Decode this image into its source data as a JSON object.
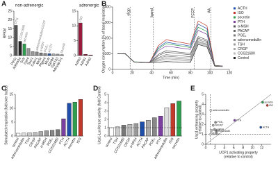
{
  "chart_data": [
    {
      "panel": "A",
      "type": "bar",
      "title": "non-adrenergic",
      "y_label": "RPKM",
      "categories": [
        "Pth1r",
        "Adora2a",
        "Sctr",
        "Gpr4",
        "Tacr1",
        "Calcr1",
        "Mc5r",
        "Ptger4",
        "Mc4r",
        "Gpr84",
        "Gpr133",
        "Adcyap1r1"
      ],
      "values": [
        17,
        8,
        6.5,
        4,
        2.2,
        2,
        1.5,
        1.2,
        1,
        0.9,
        0.8,
        0.5
      ],
      "ligands": [
        "PTH",
        "CGS21680",
        "secretin",
        null,
        null,
        "adrenomedullin/CGRP",
        "α-MSH",
        "PGE₂",
        "ACTH",
        null,
        null,
        "PACAP"
      ],
      "colors": [
        "#555555",
        "#222222",
        "#2e9e4f",
        "#999999",
        "#999999",
        "#888888",
        "#777777",
        "#888888",
        "#1f4fa8",
        "#aaaaaa",
        "#aaaaaa",
        "#999999"
      ],
      "ylim": [
        0,
        25
      ],
      "yticks": [
        0,
        5,
        10,
        15,
        20,
        25
      ]
    },
    {
      "panel": "",
      "type": "bar",
      "title": "adrenergic",
      "categories": [
        "Adrb3",
        "Adrb1",
        "Adrb2"
      ],
      "values": [
        11,
        0.4,
        0.2
      ],
      "ligands": [
        "ISO",
        null,
        null
      ],
      "colors": [
        "#9b1b3f",
        "#9b1b3f",
        "#9b1b3f"
      ],
      "ylim": [
        0,
        15
      ],
      "yticks": [
        0,
        5,
        10,
        15
      ]
    },
    {
      "panel": "B",
      "type": "line",
      "y_label": "Oxygen consumption (% of basal respiration)",
      "x_label": "Time (min)",
      "x": [
        5,
        13,
        22,
        30,
        38,
        47,
        55,
        63,
        72,
        80,
        88,
        97,
        105,
        113
      ],
      "events": [
        {
          "label": "oligo",
          "x": 18
        },
        {
          "label": "ligand",
          "x": 42
        },
        {
          "label": "FCCP",
          "x": 84
        },
        {
          "label": "AA",
          "x": 101
        }
      ],
      "series": [
        {
          "name": "ACTH",
          "color": "#1f4fa8",
          "values": [
            100,
            100,
            48,
            45,
            44,
            140,
            175,
            166,
            158,
            149,
            290,
            261,
            25,
            22
          ]
        },
        {
          "name": "ISO",
          "color": "#c0392b",
          "values": [
            100,
            101,
            47,
            45,
            43,
            152,
            190,
            181,
            171,
            162,
            310,
            279,
            26,
            22
          ]
        },
        {
          "name": "secretin",
          "color": "#2e9e4f",
          "values": [
            100,
            99,
            49,
            46,
            44,
            132,
            165,
            157,
            149,
            140,
            270,
            243,
            25,
            21
          ]
        },
        {
          "name": "PTH",
          "color": "#7b3fa0",
          "values": [
            100,
            100,
            48,
            46,
            45,
            120,
            150,
            143,
            135,
            128,
            250,
            225,
            24,
            21
          ]
        },
        {
          "name": "α-MSH",
          "color": "#555555",
          "values": [
            100,
            100,
            47,
            45,
            44,
            96,
            120,
            114,
            108,
            102,
            210,
            189,
            24,
            20
          ]
        },
        {
          "name": "PACAP",
          "color": "#666666",
          "values": [
            100,
            100,
            48,
            45,
            44,
            88,
            110,
            105,
            99,
            94,
            200,
            180,
            23,
            20
          ]
        },
        {
          "name": "PGE₂",
          "color": "#777777",
          "values": [
            100,
            100,
            48,
            46,
            44,
            76,
            95,
            90,
            86,
            81,
            190,
            171,
            23,
            20
          ]
        },
        {
          "name": "adrenomedullin",
          "color": "#888888",
          "values": [
            100,
            100,
            47,
            45,
            44,
            70,
            85,
            81,
            77,
            72,
            180,
            162,
            22,
            19
          ]
        },
        {
          "name": "TSH",
          "color": "#999999",
          "values": [
            100,
            100,
            48,
            45,
            43,
            62,
            75,
            71,
            68,
            64,
            175,
            158,
            22,
            19
          ]
        },
        {
          "name": "CRGP",
          "color": "#aaaaaa",
          "values": [
            100,
            100,
            48,
            45,
            44,
            58,
            68,
            65,
            62,
            58,
            170,
            153,
            22,
            19
          ]
        },
        {
          "name": "CGS21680",
          "color": "#bbbbbb",
          "values": [
            100,
            100,
            47,
            45,
            44,
            54,
            62,
            59,
            56,
            53,
            165,
            149,
            21,
            19
          ]
        },
        {
          "name": "Control",
          "color": "#222222",
          "values": [
            100,
            100,
            48,
            45,
            44,
            46,
            50,
            48,
            47,
            45,
            160,
            144,
            21,
            18
          ]
        }
      ],
      "xlim": [
        0,
        120
      ],
      "xticks": [
        0,
        20,
        40,
        60,
        80,
        100,
        120
      ],
      "ylim": [
        0,
        400
      ],
      "yticks": [
        0,
        100,
        200,
        300,
        400
      ]
    },
    {
      "panel": "C",
      "type": "bar",
      "y_label": "Stimulated respiration (fold over basal)",
      "categories": [
        "control",
        "adrenomedullin",
        "TSH",
        "CRGP",
        "PACAP",
        "α-MSH",
        "PGE₂",
        "CGS21680",
        "PTH",
        "ACTH",
        "secretin",
        "ISO"
      ],
      "values": [
        1,
        1.1,
        1.2,
        1.3,
        1.6,
        1.9,
        2.1,
        2.3,
        6.2,
        11.8,
        12.2,
        13.2
      ],
      "colors": [
        "#ffffff",
        "#dddddd",
        "#cccccc",
        "#bbbbbb",
        "#aaaaaa",
        "#999999",
        "#888888",
        "#777777",
        "#7b3fa0",
        "#1f4fa8",
        "#2e9e4f",
        "#c0392b"
      ],
      "ylim": [
        0,
        15
      ],
      "yticks": [
        0,
        5,
        10,
        15
      ]
    },
    {
      "panel": "D",
      "type": "bar",
      "y_label": "Ucp1-Luciferase activity (fold Control)",
      "categories": [
        "control",
        "TSH",
        "CGS21680",
        "CRGP",
        "α-MSH",
        "ACTH",
        "PACAP",
        "PGE₂",
        "PTH",
        "adrenomedullin",
        "ISO",
        "secretin"
      ],
      "values": [
        1,
        1.1,
        1.3,
        1.4,
        1.5,
        1.7,
        1.9,
        2.2,
        2.4,
        3.4,
        3.9,
        4.2
      ],
      "colors": [
        "#ffffff",
        "#cccccc",
        "#777777",
        "#bbbbbb",
        "#999999",
        "#1f4fa8",
        "#aaaaaa",
        "#888888",
        "#7b3fa0",
        "#dddddd",
        "#c0392b",
        "#2e9e4f"
      ],
      "ref_y": 1,
      "ylim": [
        0,
        5
      ],
      "yticks": [
        0,
        1,
        2,
        3,
        4,
        5
      ]
    },
    {
      "panel": "E",
      "type": "scatter",
      "x_label": "UCP1 activating property",
      "x_sublabel": "(relative to control)",
      "y_label": "Ucp1 enhancing property",
      "y_sublabel": "(relative to control)",
      "points": [
        {
          "name": "control",
          "x": 1,
          "y": 1,
          "color": "#ffffff"
        },
        {
          "name": "TSH",
          "x": 1.2,
          "y": 1.1,
          "color": "#cccccc"
        },
        {
          "name": "CGS21680",
          "x": 2.3,
          "y": 1.3,
          "color": "#777777"
        },
        {
          "name": "CRGP",
          "x": 1.3,
          "y": 1.4,
          "color": "#bbbbbb"
        },
        {
          "name": "α-MSH",
          "x": 1.9,
          "y": 1.5,
          "color": "#999999"
        },
        {
          "name": "PACAP",
          "x": 1.6,
          "y": 1.9,
          "color": "#aaaaaa"
        },
        {
          "name": "PGE₂",
          "x": 2.1,
          "y": 2.2,
          "color": "#888888"
        },
        {
          "name": "PTH",
          "x": 6.2,
          "y": 2.4,
          "color": "#7b3fa0"
        },
        {
          "name": "adrenomedullin",
          "x": 1.1,
          "y": 3.4,
          "color": "#dddddd"
        },
        {
          "name": "ACTH",
          "x": 11.8,
          "y": 1.7,
          "color": "#1f4fa8"
        },
        {
          "name": "secretin",
          "x": 12.2,
          "y": 4.2,
          "color": "#2e9e4f"
        },
        {
          "name": "ISO",
          "x": 13.2,
          "y": 3.9,
          "color": "#c0392b"
        }
      ],
      "ref_x": 1,
      "ref_y": 1,
      "diagonal": true,
      "xlim": [
        0,
        14
      ],
      "xticks": [
        0,
        2,
        4,
        6,
        8,
        10,
        12
      ],
      "ylim": [
        0,
        5
      ],
      "yticks": [
        0,
        1,
        2,
        3,
        4,
        5
      ]
    }
  ]
}
